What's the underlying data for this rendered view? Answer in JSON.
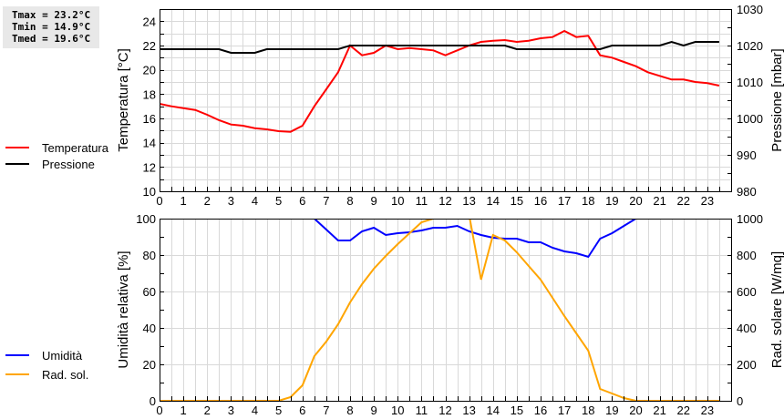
{
  "stats": {
    "tmax": "Tmax = 23.2°C",
    "tmin": "Tmin = 14.9°C",
    "tmed": "Tmed = 19.6°C"
  },
  "legend_top": [
    {
      "label": "Temperatura",
      "color": "#ff0000"
    },
    {
      "label": "Pressione",
      "color": "#000000"
    }
  ],
  "legend_bottom": [
    {
      "label": "Umidità",
      "color": "#0000ff"
    },
    {
      "label": "Rad. sol.",
      "color": "#ffa500"
    }
  ],
  "chart_data": [
    {
      "type": "line",
      "title": "",
      "xlabel": "",
      "x_ticks": [
        0,
        1,
        2,
        3,
        4,
        5,
        6,
        7,
        8,
        9,
        10,
        11,
        12,
        13,
        14,
        15,
        16,
        17,
        18,
        19,
        20,
        21,
        22,
        23
      ],
      "xlim": [
        0,
        24
      ],
      "grid": true,
      "ylabel": "Temperatura [°C]",
      "ylim": [
        10,
        25
      ],
      "y_ticks": [
        10,
        12,
        14,
        16,
        18,
        20,
        22,
        24
      ],
      "y2label": "Pressione [mbar]",
      "y2lim": [
        980,
        1030
      ],
      "y2_ticks": [
        980,
        990,
        1000,
        1010,
        1020,
        1030
      ],
      "x": [
        0,
        0.5,
        1,
        1.5,
        2,
        2.5,
        3,
        3.5,
        4,
        4.5,
        5,
        5.5,
        6,
        6.5,
        7,
        7.5,
        8,
        8.5,
        9,
        9.5,
        10,
        10.5,
        11,
        11.5,
        12,
        12.5,
        13,
        13.5,
        14,
        14.5,
        15,
        15.5,
        16,
        16.5,
        17,
        17.5,
        18,
        18.5,
        19,
        19.5,
        20,
        20.5,
        21,
        21.5,
        22,
        22.5,
        23,
        23.5
      ],
      "series": [
        {
          "name": "Temperatura",
          "axis": "left",
          "color": "#ff0000",
          "values": [
            17.2,
            17.0,
            16.85,
            16.7,
            16.3,
            15.85,
            15.5,
            15.4,
            15.2,
            15.1,
            14.95,
            14.9,
            15.4,
            17.0,
            18.4,
            19.8,
            22.0,
            21.2,
            21.4,
            22.0,
            21.7,
            21.8,
            21.7,
            21.6,
            21.2,
            21.6,
            22.0,
            22.3,
            22.4,
            22.45,
            22.3,
            22.4,
            22.6,
            22.7,
            23.2,
            22.7,
            22.8,
            21.2,
            21.0,
            20.65,
            20.3,
            19.8,
            19.5,
            19.2,
            19.2,
            19.0,
            18.9,
            18.7
          ]
        },
        {
          "name": "Pressione",
          "axis": "right",
          "color": "#000000",
          "values": [
            1019,
            1019,
            1019,
            1019,
            1019,
            1019,
            1018,
            1018,
            1018,
            1019,
            1019,
            1019,
            1019,
            1019,
            1019,
            1019,
            1020,
            1020,
            1020,
            1020,
            1020,
            1020,
            1020,
            1020,
            1020,
            1020,
            1020,
            1020,
            1020,
            1020,
            1019,
            1019,
            1019,
            1019,
            1019,
            1019,
            1019,
            1019,
            1020,
            1020,
            1020,
            1020,
            1020,
            1021,
            1020,
            1021,
            1021,
            1021
          ]
        }
      ]
    },
    {
      "type": "line",
      "title": "",
      "xlabel": "",
      "x_ticks": [
        0,
        1,
        2,
        3,
        4,
        5,
        6,
        7,
        8,
        9,
        10,
        11,
        12,
        13,
        14,
        15,
        16,
        17,
        18,
        19,
        20,
        21,
        22,
        23
      ],
      "xlim": [
        0,
        24
      ],
      "grid": true,
      "ylabel": "Umidità relativa [%]",
      "ylim": [
        0,
        100
      ],
      "y_ticks": [
        0,
        20,
        40,
        60,
        80,
        100
      ],
      "y2label": "Rad. solare [W/mq]",
      "y2lim": [
        0,
        1000
      ],
      "y2_ticks": [
        0,
        200,
        400,
        600,
        800,
        1000
      ],
      "x": [
        0,
        0.5,
        1,
        1.5,
        2,
        2.5,
        3,
        3.5,
        4,
        4.5,
        5,
        5.5,
        6,
        6.5,
        7,
        7.5,
        8,
        8.5,
        9,
        9.5,
        10,
        10.5,
        11,
        11.5,
        12,
        12.5,
        13,
        13.5,
        14,
        14.5,
        15,
        15.5,
        16,
        16.5,
        17,
        17.5,
        18,
        18.5,
        19,
        19.5,
        20,
        20.5,
        21,
        21.5,
        22,
        22.5,
        23,
        23.5
      ],
      "series": [
        {
          "name": "Umidità",
          "axis": "left",
          "color": "#0000ff",
          "values": [
            100,
            100,
            100,
            100,
            100,
            100,
            100,
            100,
            100,
            100,
            100,
            100,
            100,
            100,
            94,
            88,
            88,
            93,
            95,
            91,
            92,
            92.5,
            93.5,
            95,
            95,
            96,
            93,
            91,
            89.5,
            89,
            89,
            87,
            87,
            84,
            82,
            81,
            79,
            89,
            92,
            96,
            100,
            100,
            100,
            100,
            100,
            100,
            100,
            100
          ]
        },
        {
          "name": "Rad. sol.",
          "axis": "right",
          "color": "#ffa500",
          "values": [
            0,
            0,
            0,
            0,
            0,
            0,
            0,
            0,
            0,
            0,
            0,
            20,
            85,
            245,
            325,
            420,
            540,
            640,
            725,
            795,
            860,
            920,
            980,
            1000,
            1060,
            1100,
            1020,
            665,
            910,
            880,
            815,
            740,
            665,
            565,
            465,
            370,
            275,
            65,
            40,
            15,
            0,
            0,
            0,
            0,
            0,
            0,
            0,
            0
          ]
        }
      ]
    }
  ]
}
